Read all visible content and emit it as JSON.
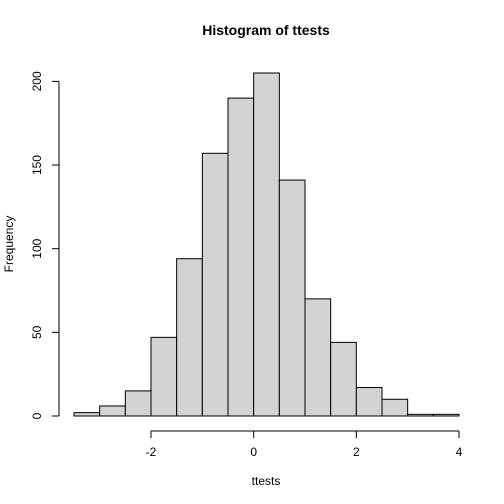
{
  "chart_data": {
    "type": "bar",
    "title": "Histogram of ttests",
    "xlabel": "ttests",
    "ylabel": "Frequency",
    "bins": [
      {
        "x0": -3.5,
        "x1": -3.0,
        "count": 2
      },
      {
        "x0": -3.0,
        "x1": -2.5,
        "count": 6
      },
      {
        "x0": -2.5,
        "x1": -2.0,
        "count": 15
      },
      {
        "x0": -2.0,
        "x1": -1.5,
        "count": 47
      },
      {
        "x0": -1.5,
        "x1": -1.0,
        "count": 94
      },
      {
        "x0": -1.0,
        "x1": -0.5,
        "count": 157
      },
      {
        "x0": -0.5,
        "x1": 0.0,
        "count": 190
      },
      {
        "x0": 0.0,
        "x1": 0.5,
        "count": 205
      },
      {
        "x0": 0.5,
        "x1": 1.0,
        "count": 141
      },
      {
        "x0": 1.0,
        "x1": 1.5,
        "count": 70
      },
      {
        "x0": 1.5,
        "x1": 2.0,
        "count": 44
      },
      {
        "x0": 2.0,
        "x1": 2.5,
        "count": 17
      },
      {
        "x0": 2.5,
        "x1": 3.0,
        "count": 10
      },
      {
        "x0": 3.0,
        "x1": 3.5,
        "count": 1
      },
      {
        "x0": 3.5,
        "x1": 4.0,
        "count": 1
      }
    ],
    "xticks": [
      -2,
      0,
      2,
      4
    ],
    "yticks": [
      0,
      50,
      100,
      150,
      200
    ],
    "xlim": [
      -3.5,
      4.0
    ],
    "ylim": [
      0,
      205
    ],
    "grid": false,
    "legend": "none",
    "colors": {
      "bar_fill": "#d3d3d3",
      "bar_stroke": "#000000"
    }
  }
}
